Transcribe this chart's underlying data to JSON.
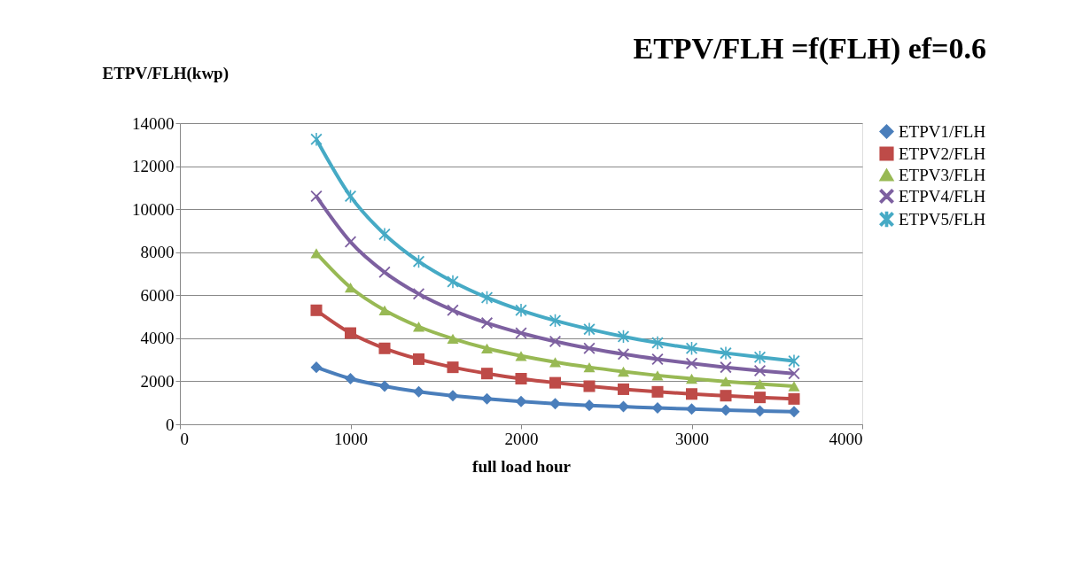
{
  "chart_data": {
    "type": "line",
    "title": "ETPV/FLH =f(FLH) ef=0.6",
    "ylabel": "ETPV/FLH(kwp)",
    "xlabel": "full load hour",
    "x": [
      800,
      1000,
      1200,
      1400,
      1600,
      1800,
      2000,
      2200,
      2400,
      2600,
      2800,
      3000,
      3200,
      3400,
      3600
    ],
    "series": [
      {
        "name": "ETPV1/FLH",
        "color": "#4a7ebb",
        "marker": "diamond",
        "values": [
          2650,
          2120,
          1770,
          1510,
          1330,
          1180,
          1060,
          960,
          880,
          820,
          760,
          710,
          660,
          620,
          590
        ]
      },
      {
        "name": "ETPV2/FLH",
        "color": "#be4b48",
        "marker": "square",
        "values": [
          5300,
          4240,
          3530,
          3030,
          2650,
          2360,
          2120,
          1930,
          1770,
          1630,
          1510,
          1410,
          1330,
          1250,
          1180
        ]
      },
      {
        "name": "ETPV3/FLH",
        "color": "#98b954",
        "marker": "triangle",
        "values": [
          7950,
          6360,
          5300,
          4540,
          3980,
          3530,
          3180,
          2890,
          2650,
          2450,
          2270,
          2120,
          1990,
          1870,
          1770
        ]
      },
      {
        "name": "ETPV4/FLH",
        "color": "#7d60a0",
        "marker": "cross",
        "values": [
          10600,
          8480,
          7070,
          6060,
          5300,
          4710,
          4240,
          3850,
          3530,
          3260,
          3030,
          2830,
          2650,
          2490,
          2360
        ]
      },
      {
        "name": "ETPV5/FLH",
        "color": "#46aac5",
        "marker": "star",
        "values": [
          13250,
          10600,
          8830,
          7570,
          6630,
          5890,
          5300,
          4820,
          4420,
          4080,
          3790,
          3530,
          3310,
          3120,
          2940
        ]
      }
    ],
    "xlim": [
      0,
      4000
    ],
    "xticks": [
      0,
      1000,
      2000,
      3000,
      4000
    ],
    "ylim": [
      0,
      14000
    ],
    "yticks": [
      0,
      2000,
      4000,
      6000,
      8000,
      10000,
      12000,
      14000
    ],
    "grid": "y",
    "legend": "right"
  }
}
